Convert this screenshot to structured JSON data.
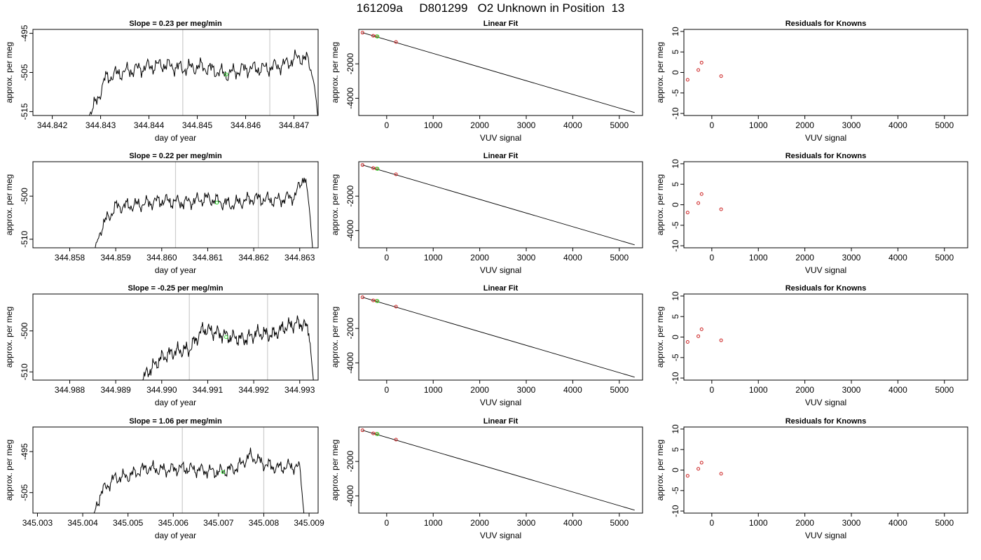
{
  "page": {
    "title": "161209a     D801299   O2 Unknown in Position  13"
  },
  "colors": {
    "axis": "#000000",
    "trace": "#000000",
    "vline": "#cccccc",
    "marker_green": "#33dd33",
    "marker_red": "#cc2222"
  },
  "chart_data": [
    {
      "id": "r1-trace",
      "type": "line",
      "title": "Slope =  0.23  per meg/min",
      "xlabel": "day of year",
      "ylabel": "approx. per meg",
      "xlim": [
        344.8416,
        344.8475
      ],
      "ylim": [
        -516,
        -494
      ],
      "xticks": [
        344.842,
        344.843,
        344.844,
        344.845,
        344.846,
        344.847
      ],
      "xtick_labels": [
        "344.842",
        "344.843",
        "344.844",
        "344.845",
        "344.846",
        "344.847"
      ],
      "yticks": [
        -495,
        -505,
        -515
      ],
      "ytick_labels": [
        "-495",
        "-505",
        "-515"
      ],
      "vlines": [
        344.8447,
        344.8465
      ],
      "trace": {
        "start": 344.8428,
        "end": 344.8475,
        "base": -505,
        "amp": 2.2,
        "seed": 1.3,
        "anchors": [
          [
            344.8427,
            -517
          ],
          [
            344.8429,
            -513
          ],
          [
            344.8431,
            -506.5
          ],
          [
            344.8433,
            -505.5
          ],
          [
            344.8436,
            -504.5
          ],
          [
            344.844,
            -503.5
          ],
          [
            344.8443,
            -503
          ],
          [
            344.8447,
            -504
          ],
          [
            344.8451,
            -503.5
          ],
          [
            344.8456,
            -505.5
          ],
          [
            344.846,
            -504
          ],
          [
            344.8464,
            -504
          ],
          [
            344.8468,
            -503
          ],
          [
            344.8471,
            -501
          ],
          [
            344.8473,
            -502
          ],
          [
            344.8474,
            -506
          ],
          [
            344.8475,
            -517
          ]
        ]
      },
      "point": [
        344.8456,
        -505.5
      ]
    },
    {
      "id": "r1-fit",
      "type": "scatter",
      "title": "Linear Fit",
      "xlabel": "VUV signal",
      "ylabel": "approx. per meg",
      "xlim": [
        -600,
        5500
      ],
      "ylim": [
        -5000,
        0
      ],
      "xticks": [
        0,
        1000,
        2000,
        3000,
        4000,
        5000
      ],
      "xtick_labels": [
        "0",
        "1000",
        "2000",
        "3000",
        "4000",
        "5000"
      ],
      "yticks": [
        -2000,
        -4000
      ],
      "ytick_labels": [
        "-2000",
        "-4000"
      ],
      "line": [
        [
          -520,
          -190
        ],
        [
          5330,
          -4830
        ]
      ],
      "known_points": [
        [
          -520,
          -190
        ],
        [
          -290,
          -370
        ],
        [
          -220,
          -400
        ],
        [
          200,
          -730
        ]
      ],
      "unknown_point": [
        -200,
        -410
      ]
    },
    {
      "id": "r1-resid",
      "type": "scatter",
      "title": "Residuals for Knowns",
      "xlabel": "VUV signal",
      "ylabel": "approx. per meg",
      "xlim": [
        -600,
        5500
      ],
      "ylim": [
        -10.5,
        10.5
      ],
      "xticks": [
        0,
        1000,
        2000,
        3000,
        4000,
        5000
      ],
      "xtick_labels": [
        "0",
        "1000",
        "2000",
        "3000",
        "4000",
        "5000"
      ],
      "yticks": [
        10,
        5,
        0,
        -5,
        -10
      ],
      "ytick_labels": [
        "10",
        "5",
        "0",
        "-5",
        "-10"
      ],
      "points": [
        [
          -520,
          -1.8
        ],
        [
          -290,
          0.6
        ],
        [
          -220,
          2.4
        ],
        [
          200,
          -0.9
        ]
      ]
    },
    {
      "id": "r2-trace",
      "type": "line",
      "title": "Slope =  0.22  per meg/min",
      "xlabel": "day of year",
      "ylabel": "approx. per meg",
      "xlim": [
        344.8572,
        344.8634
      ],
      "ylim": [
        -512,
        -492
      ],
      "xticks": [
        344.858,
        344.859,
        344.86,
        344.861,
        344.862,
        344.863
      ],
      "xtick_labels": [
        "344.858",
        "344.859",
        "344.860",
        "344.861",
        "344.862",
        "344.863"
      ],
      "yticks": [
        -500,
        -510
      ],
      "ytick_labels": [
        "-500",
        "-510"
      ],
      "vlines": [
        344.8603,
        344.8621
      ],
      "trace": {
        "start": 344.8586,
        "end": 344.8632,
        "base": -502,
        "amp": 1.8,
        "seed": 2.7,
        "anchors": [
          [
            344.8585,
            -514
          ],
          [
            344.8587,
            -507
          ],
          [
            344.859,
            -502.5
          ],
          [
            344.8595,
            -502
          ],
          [
            344.86,
            -501
          ],
          [
            344.8605,
            -501.5
          ],
          [
            344.861,
            -500.5
          ],
          [
            344.8615,
            -502
          ],
          [
            344.862,
            -500.5
          ],
          [
            344.8625,
            -501
          ],
          [
            344.8629,
            -500
          ],
          [
            344.8631,
            -495
          ],
          [
            344.8632,
            -502
          ],
          [
            344.8633,
            -514
          ]
        ]
      },
      "point": [
        344.8612,
        -501.5
      ]
    },
    {
      "id": "r2-fit",
      "type": "scatter",
      "title": "Linear Fit",
      "xlabel": "VUV signal",
      "ylabel": "approx. per meg",
      "xlim": [
        -600,
        5500
      ],
      "ylim": [
        -5000,
        0
      ],
      "xticks": [
        0,
        1000,
        2000,
        3000,
        4000,
        5000
      ],
      "xtick_labels": [
        "0",
        "1000",
        "2000",
        "3000",
        "4000",
        "5000"
      ],
      "yticks": [
        -2000,
        -4000
      ],
      "ytick_labels": [
        "-2000",
        "-4000"
      ],
      "line": [
        [
          -520,
          -190
        ],
        [
          5330,
          -4830
        ]
      ],
      "known_points": [
        [
          -520,
          -190
        ],
        [
          -290,
          -370
        ],
        [
          -220,
          -400
        ],
        [
          200,
          -730
        ]
      ],
      "unknown_point": [
        -200,
        -410
      ]
    },
    {
      "id": "r2-resid",
      "type": "scatter",
      "title": "Residuals for Knowns",
      "xlabel": "VUV signal",
      "ylabel": "approx. per meg",
      "xlim": [
        -600,
        5500
      ],
      "ylim": [
        -10.5,
        10.5
      ],
      "xticks": [
        0,
        1000,
        2000,
        3000,
        4000,
        5000
      ],
      "xtick_labels": [
        "0",
        "1000",
        "2000",
        "3000",
        "4000",
        "5000"
      ],
      "yticks": [
        10,
        5,
        0,
        -5,
        -10
      ],
      "ytick_labels": [
        "10",
        "5",
        "0",
        "-5",
        "-10"
      ],
      "points": [
        [
          -520,
          -1.9
        ],
        [
          -290,
          0.4
        ],
        [
          -220,
          2.6
        ],
        [
          200,
          -1.1
        ]
      ]
    },
    {
      "id": "r3-trace",
      "type": "line",
      "title": "Slope =  -0.25  per meg/min",
      "xlabel": "day of year",
      "ylabel": "approx. per meg",
      "xlim": [
        344.9872,
        344.9934
      ],
      "ylim": [
        -512,
        -491
      ],
      "xticks": [
        344.988,
        344.989,
        344.99,
        344.991,
        344.992,
        344.993
      ],
      "xtick_labels": [
        "344.988",
        "344.989",
        "344.990",
        "344.991",
        "344.992",
        "344.993"
      ],
      "yticks": [
        -500,
        -510
      ],
      "ytick_labels": [
        "-500",
        "-510"
      ],
      "vlines": [
        344.9906,
        344.9923
      ],
      "trace": {
        "start": 344.9896,
        "end": 344.9933,
        "base": -502,
        "amp": 2.0,
        "seed": 4.1,
        "anchors": [
          [
            344.9895,
            -513
          ],
          [
            344.9897,
            -510
          ],
          [
            344.99,
            -506.5
          ],
          [
            344.9903,
            -505
          ],
          [
            344.9906,
            -504.5
          ],
          [
            344.9909,
            -499.5
          ],
          [
            344.9912,
            -500.5
          ],
          [
            344.9915,
            -501.5
          ],
          [
            344.9918,
            -502
          ],
          [
            344.9921,
            -500.5
          ],
          [
            344.9924,
            -501
          ],
          [
            344.9927,
            -499
          ],
          [
            344.993,
            -498
          ],
          [
            344.9932,
            -499.5
          ],
          [
            344.9933,
            -513
          ]
        ]
      },
      "point": [
        344.9914,
        -501.5
      ]
    },
    {
      "id": "r3-fit",
      "type": "scatter",
      "title": "Linear Fit",
      "xlabel": "VUV signal",
      "ylabel": "approx. per meg",
      "xlim": [
        -600,
        5500
      ],
      "ylim": [
        -5000,
        0
      ],
      "xticks": [
        0,
        1000,
        2000,
        3000,
        4000,
        5000
      ],
      "xtick_labels": [
        "0",
        "1000",
        "2000",
        "3000",
        "4000",
        "5000"
      ],
      "yticks": [
        -2000,
        -4000
      ],
      "ytick_labels": [
        "-2000",
        "-4000"
      ],
      "line": [
        [
          -520,
          -190
        ],
        [
          5330,
          -4830
        ]
      ],
      "known_points": [
        [
          -520,
          -190
        ],
        [
          -290,
          -370
        ],
        [
          -220,
          -400
        ],
        [
          200,
          -730
        ]
      ],
      "unknown_point": [
        -200,
        -410
      ]
    },
    {
      "id": "r3-resid",
      "type": "scatter",
      "title": "Residuals for Knowns",
      "xlabel": "VUV signal",
      "ylabel": "approx. per meg",
      "xlim": [
        -600,
        5500
      ],
      "ylim": [
        -10.5,
        10.5
      ],
      "xticks": [
        0,
        1000,
        2000,
        3000,
        4000,
        5000
      ],
      "xtick_labels": [
        "0",
        "1000",
        "2000",
        "3000",
        "4000",
        "5000"
      ],
      "yticks": [
        10,
        5,
        0,
        -5,
        -10
      ],
      "ytick_labels": [
        "10",
        "5",
        "0",
        "-5",
        "-10"
      ],
      "points": [
        [
          -520,
          -1.2
        ],
        [
          -290,
          0.2
        ],
        [
          -220,
          1.9
        ],
        [
          200,
          -0.8
        ]
      ]
    },
    {
      "id": "r4-trace",
      "type": "line",
      "title": "Slope =  1.06  per meg/min",
      "xlabel": "day of year",
      "ylabel": "approx. per meg",
      "xlim": [
        345.0029,
        345.0092
      ],
      "ylim": [
        -510,
        -489
      ],
      "xticks": [
        345.003,
        345.004,
        345.005,
        345.006,
        345.007,
        345.008,
        345.009
      ],
      "xtick_labels": [
        "345.003",
        "345.004",
        "345.005",
        "345.006",
        "345.007",
        "345.008",
        "345.009"
      ],
      "yticks": [
        -495,
        -505
      ],
      "ytick_labels": [
        "-495",
        "-505"
      ],
      "vlines": [
        345.0062,
        345.008
      ],
      "trace": {
        "start": 345.0043,
        "end": 345.0089,
        "base": -499,
        "amp": 1.8,
        "seed": 5.9,
        "anchors": [
          [
            345.0042,
            -512
          ],
          [
            345.0044,
            -505
          ],
          [
            345.0047,
            -501.5
          ],
          [
            345.005,
            -501
          ],
          [
            345.0054,
            -499
          ],
          [
            345.0058,
            -499.5
          ],
          [
            345.0062,
            -499
          ],
          [
            345.0066,
            -499.5
          ],
          [
            345.007,
            -500
          ],
          [
            345.0074,
            -499
          ],
          [
            345.0077,
            -496
          ],
          [
            345.008,
            -498
          ],
          [
            345.0083,
            -499
          ],
          [
            345.0086,
            -498.5
          ],
          [
            345.0088,
            -499
          ],
          [
            345.0089,
            -512
          ]
        ]
      },
      "point": [
        345.0071,
        -500
      ]
    },
    {
      "id": "r4-fit",
      "type": "scatter",
      "title": "Linear Fit",
      "xlabel": "VUV signal",
      "ylabel": "approx. per meg",
      "xlim": [
        -600,
        5500
      ],
      "ylim": [
        -5000,
        0
      ],
      "xticks": [
        0,
        1000,
        2000,
        3000,
        4000,
        5000
      ],
      "xtick_labels": [
        "0",
        "1000",
        "2000",
        "3000",
        "4000",
        "5000"
      ],
      "yticks": [
        -2000,
        -4000
      ],
      "ytick_labels": [
        "-2000",
        "-4000"
      ],
      "line": [
        [
          -520,
          -190
        ],
        [
          5330,
          -4830
        ]
      ],
      "known_points": [
        [
          -520,
          -190
        ],
        [
          -290,
          -370
        ],
        [
          -220,
          -400
        ],
        [
          200,
          -730
        ]
      ],
      "unknown_point": [
        -200,
        -410
      ]
    },
    {
      "id": "r4-resid",
      "type": "scatter",
      "title": "Residuals for Knowns",
      "xlabel": "VUV signal",
      "ylabel": "approx. per meg",
      "xlim": [
        -600,
        5500
      ],
      "ylim": [
        -10.5,
        10.5
      ],
      "xticks": [
        0,
        1000,
        2000,
        3000,
        4000,
        5000
      ],
      "xtick_labels": [
        "0",
        "1000",
        "2000",
        "3000",
        "4000",
        "5000"
      ],
      "yticks": [
        10,
        5,
        0,
        -5,
        -10
      ],
      "ytick_labels": [
        "10",
        "5",
        "0",
        "-5",
        "-10"
      ],
      "points": [
        [
          -520,
          -1.4
        ],
        [
          -290,
          0.3
        ],
        [
          -220,
          1.8
        ],
        [
          200,
          -0.9
        ]
      ]
    }
  ]
}
